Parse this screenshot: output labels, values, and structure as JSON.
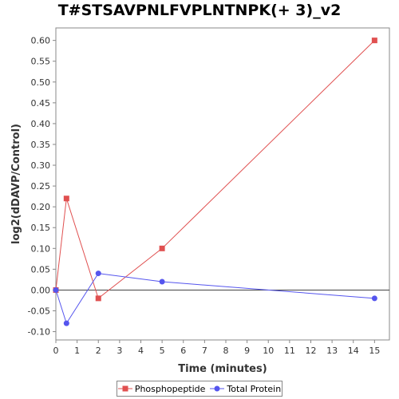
{
  "chart_data": {
    "type": "line",
    "title": "T#STSAVPNLFVPLNTNPK(+ 3)_v2",
    "xlabel": "Time (minutes)",
    "ylabel": "log2(dDAVP/Control)",
    "xlim": [
      0,
      15.7
    ],
    "ylim": [
      -0.12,
      0.63
    ],
    "xticks": [
      0,
      1,
      2,
      3,
      4,
      5,
      6,
      7,
      8,
      9,
      10,
      11,
      12,
      13,
      14,
      15
    ],
    "yticks": [
      -0.1,
      -0.05,
      0.0,
      0.05,
      0.1,
      0.15,
      0.2,
      0.25,
      0.3,
      0.35,
      0.4,
      0.45,
      0.5,
      0.55,
      0.6
    ],
    "grid": false,
    "legend_position": "bottom",
    "series": [
      {
        "name": "Phosphopeptide",
        "color": "#e05050",
        "marker": "square",
        "x": [
          0,
          0.5,
          2,
          5,
          15
        ],
        "y": [
          0.0,
          0.22,
          -0.02,
          0.1,
          0.6
        ]
      },
      {
        "name": "Total Protein",
        "color": "#5555ee",
        "marker": "circle",
        "x": [
          0,
          0.5,
          2,
          5,
          15
        ],
        "y": [
          0.0,
          -0.08,
          0.04,
          0.02,
          -0.02
        ]
      }
    ]
  }
}
